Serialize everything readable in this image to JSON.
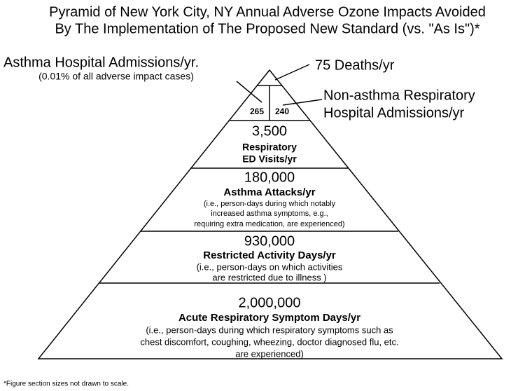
{
  "title": [
    "Pyramid of New York City, NY Annual Adverse Ozone Impacts Avoided",
    "By The Implementation of The Proposed New Standard (vs. \"As Is\")*"
  ],
  "callouts": {
    "asthma_hospital": {
      "label": "Asthma Hospital Admissions/yr.",
      "note": "(0.01% of all adverse impact cases)",
      "value": "265"
    },
    "deaths": {
      "label": "75  Deaths/yr"
    },
    "non_asthma": {
      "label": [
        "Non-asthma Respiratory",
        "Hospital Admissions/yr"
      ],
      "value": "240"
    }
  },
  "levels": [
    {
      "value": "3,500",
      "label": [
        "Respiratory",
        "ED Visits/yr"
      ],
      "note": []
    },
    {
      "value": "180,000",
      "label": [
        "Asthma Attacks/yr"
      ],
      "note": [
        "(i.e.,  person-days during which notably",
        "increased asthma symptoms, e.g.,",
        "requiring extra medication, are experienced)"
      ]
    },
    {
      "value": "930,000",
      "label": [
        "Restricted Activity Days/yr"
      ],
      "note": [
        "(i.e.,  person-days on which  activities",
        "are restricted due to illness )"
      ]
    },
    {
      "value": "2,000,000",
      "label": [
        "Acute Respiratory Symptom Days/yr"
      ],
      "note": [
        "(i.e., person-days during which respiratory symptoms such as",
        "chest discomfort, coughing, wheezing, doctor diagnosed flu, etc.",
        "are experienced)"
      ]
    }
  ],
  "footnote": "*Figure section sizes not drawn to scale."
}
